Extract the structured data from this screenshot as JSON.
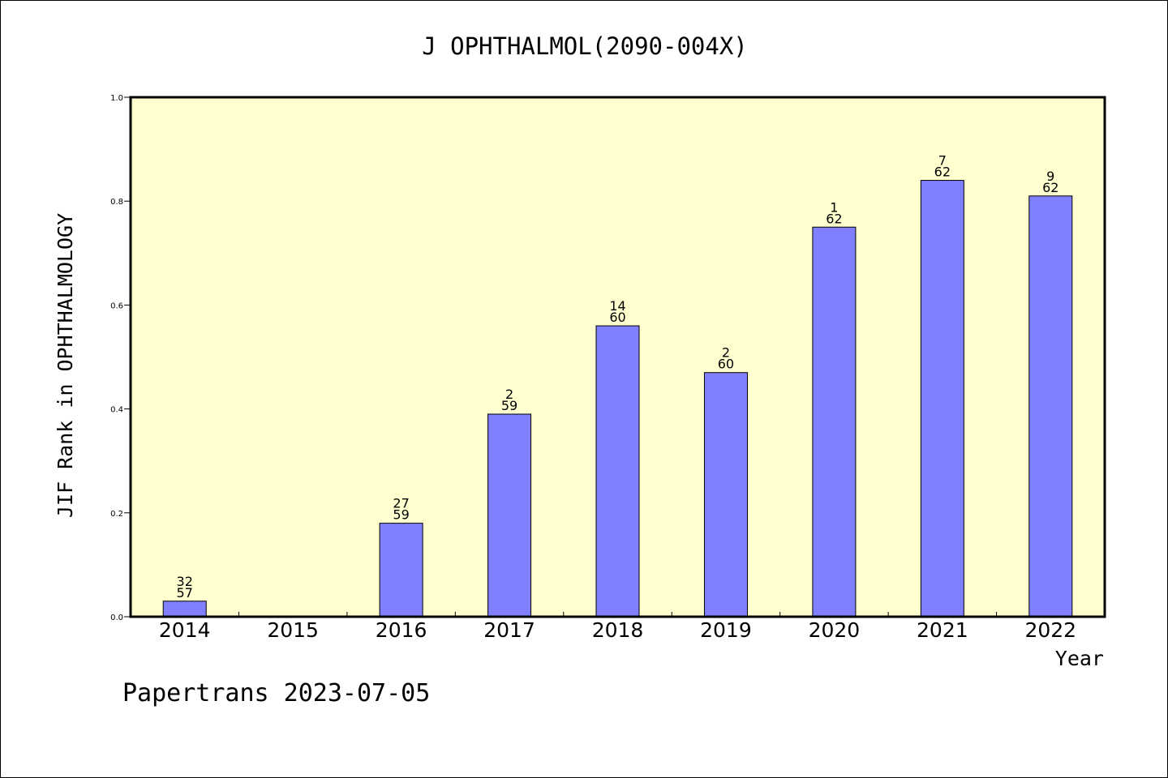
{
  "chart_data": {
    "type": "bar",
    "title": "J OPHTHALMOL(2090-004X)",
    "xlabel": "Year",
    "ylabel": "JIF Rank in OPHTHALMOLOGY",
    "ylim": [
      0,
      1.0
    ],
    "yticks": [
      "0.0",
      "0.2",
      "0.4",
      "0.6",
      "0.8",
      "1.0"
    ],
    "ytick_values": [
      0,
      0.2,
      0.4,
      0.6,
      0.8,
      1.0
    ],
    "categories": [
      "2014",
      "2015",
      "2016",
      "2017",
      "2018",
      "2019",
      "2020",
      "2021",
      "2022"
    ],
    "values": [
      0.03,
      null,
      0.18,
      0.39,
      0.56,
      0.47,
      0.75,
      0.84,
      0.81
    ],
    "rank_labels": [
      "32",
      "",
      "27",
      "2",
      "14",
      "2",
      "1",
      "7",
      "9"
    ],
    "total_labels": [
      "57",
      "",
      "59",
      "59",
      "60",
      "60",
      "62",
      "62",
      "62"
    ],
    "bar_color": "#8080ff",
    "plot_background": "#ffffd0",
    "grid": false,
    "footer": "Papertrans 2023-07-05"
  }
}
